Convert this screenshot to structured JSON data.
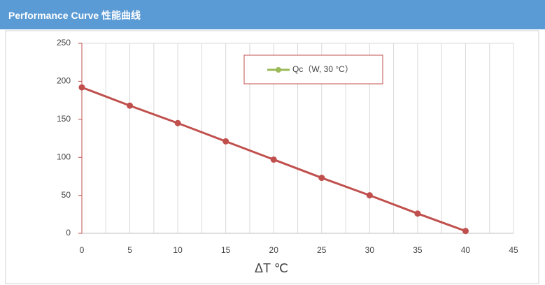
{
  "header": {
    "title": "Performance Curve  性能曲线"
  },
  "chart_data": {
    "type": "line",
    "x_label": "ΔT ℃",
    "x": [
      0,
      5,
      10,
      15,
      20,
      25,
      30,
      35,
      40
    ],
    "series": [
      {
        "name": "Qc（W, 30 °C）",
        "color": "#c0504d",
        "legend_color": "#9bbb59",
        "values": [
          192,
          168,
          145,
          121,
          97,
          73,
          50,
          26,
          3
        ]
      }
    ],
    "xlim": [
      0,
      45
    ],
    "xticks": [
      0,
      5,
      10,
      15,
      20,
      25,
      30,
      35,
      40,
      45
    ],
    "xminorticks": [
      2.5,
      7.5,
      12.5,
      17.5,
      22.5,
      27.5,
      32.5,
      37.5,
      42.5
    ],
    "ylim": [
      0,
      250
    ],
    "yticks": [
      0,
      50,
      100,
      150,
      200,
      250
    ],
    "grid": true
  }
}
